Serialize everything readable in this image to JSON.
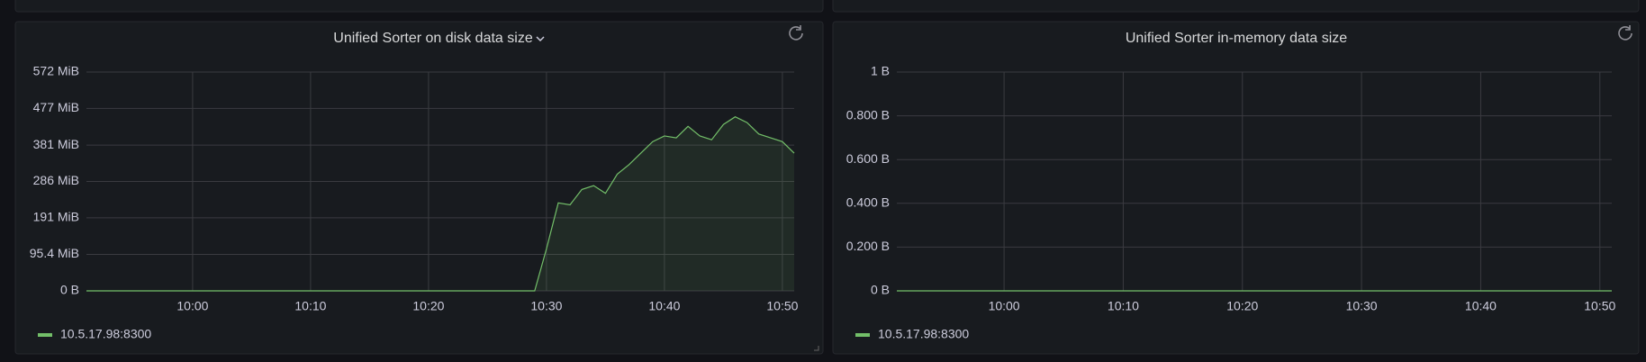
{
  "chart_data": [
    {
      "type": "line",
      "title": "Unified Sorter on disk data size",
      "x": [
        "09:51",
        "10:28",
        "10:29",
        "10:30",
        "10:31",
        "10:32",
        "10:33",
        "10:34",
        "10:35",
        "10:36",
        "10:37",
        "10:38",
        "10:39",
        "10:40",
        "10:41",
        "10:42",
        "10:43",
        "10:44",
        "10:45",
        "10:46",
        "10:47",
        "10:48",
        "10:49",
        "10:50",
        "10:51"
      ],
      "series": [
        {
          "name": "10.5.17.98:8300",
          "color": "#73bf69",
          "values": [
            0,
            0,
            0,
            110,
            230,
            225,
            265,
            275,
            255,
            305,
            330,
            360,
            390,
            405,
            400,
            430,
            405,
            395,
            435,
            455,
            440,
            410,
            400,
            390,
            360
          ]
        }
      ],
      "xlim": [
        "09:51",
        "10:51"
      ],
      "xticks": [
        "10:00",
        "10:10",
        "10:20",
        "10:30",
        "10:40",
        "10:50"
      ],
      "ylim": [
        0,
        572
      ],
      "yticks": [
        {
          "value": 0,
          "label": "0 B"
        },
        {
          "value": 95.4,
          "label": "95.4 MiB"
        },
        {
          "value": 191,
          "label": "191 MiB"
        },
        {
          "value": 286,
          "label": "286 MiB"
        },
        {
          "value": 381,
          "label": "381 MiB"
        },
        {
          "value": 477,
          "label": "477 MiB"
        },
        {
          "value": 572,
          "label": "572 MiB"
        }
      ],
      "grid": true,
      "fill": true,
      "legend": "bottom-left"
    },
    {
      "type": "line",
      "title": "Unified Sorter in-memory data size",
      "x": [
        "09:51",
        "10:51"
      ],
      "series": [
        {
          "name": "10.5.17.98:8300",
          "color": "#73bf69",
          "values": [
            0,
            0
          ]
        }
      ],
      "xlim": [
        "09:51",
        "10:51"
      ],
      "xticks": [
        "10:00",
        "10:10",
        "10:20",
        "10:30",
        "10:40",
        "10:50"
      ],
      "ylim": [
        0,
        1
      ],
      "yticks": [
        {
          "value": 0,
          "label": "0 B"
        },
        {
          "value": 0.2,
          "label": "0.200 B"
        },
        {
          "value": 0.4,
          "label": "0.400 B"
        },
        {
          "value": 0.6,
          "label": "0.600 B"
        },
        {
          "value": 0.8,
          "label": "0.800 B"
        },
        {
          "value": 1,
          "label": "1 B"
        }
      ],
      "grid": true,
      "fill": false,
      "legend": "bottom-left"
    }
  ]
}
